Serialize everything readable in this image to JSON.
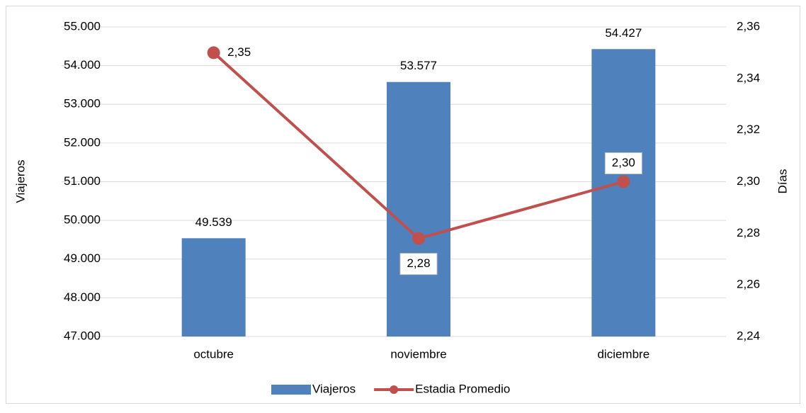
{
  "chart_data": {
    "type": "bar",
    "categories": [
      "octubre",
      "noviembre",
      "diciembre"
    ],
    "series": [
      {
        "name": "Viajeros",
        "type": "bar",
        "color": "#4f81bd",
        "values": [
          49539,
          53577,
          54427
        ],
        "value_labels": [
          "49.539",
          "53.577",
          "54.427"
        ]
      },
      {
        "name": "Estadia Promedio",
        "type": "line",
        "axis": "y2",
        "color": "#c0504d",
        "values": [
          2.35,
          2.278,
          2.3
        ],
        "value_labels": [
          "2,35",
          "2,28",
          "2,30"
        ]
      }
    ],
    "y_label": "Viajeros",
    "y2_label": "Días",
    "ylim": [
      47000,
      55000
    ],
    "yticks": [
      {
        "value": 47000,
        "label": "47.000"
      },
      {
        "value": 48000,
        "label": "48.000"
      },
      {
        "value": 49000,
        "label": "49.000"
      },
      {
        "value": 50000,
        "label": "50.000"
      },
      {
        "value": 51000,
        "label": "51.000"
      },
      {
        "value": 52000,
        "label": "52.000"
      },
      {
        "value": 53000,
        "label": "53.000"
      },
      {
        "value": 54000,
        "label": "54.000"
      },
      {
        "value": 55000,
        "label": "55.000"
      }
    ],
    "y2lim": [
      2.24,
      2.36
    ],
    "y2ticks": [
      {
        "value": 2.24,
        "label": "2,24"
      },
      {
        "value": 2.26,
        "label": "2,26"
      },
      {
        "value": 2.28,
        "label": "2,28"
      },
      {
        "value": 2.3,
        "label": "2,30"
      },
      {
        "value": 2.32,
        "label": "2,32"
      },
      {
        "value": 2.34,
        "label": "2,34"
      },
      {
        "value": 2.36,
        "label": "2,36"
      }
    ],
    "grid": true,
    "legend": "bottom"
  }
}
